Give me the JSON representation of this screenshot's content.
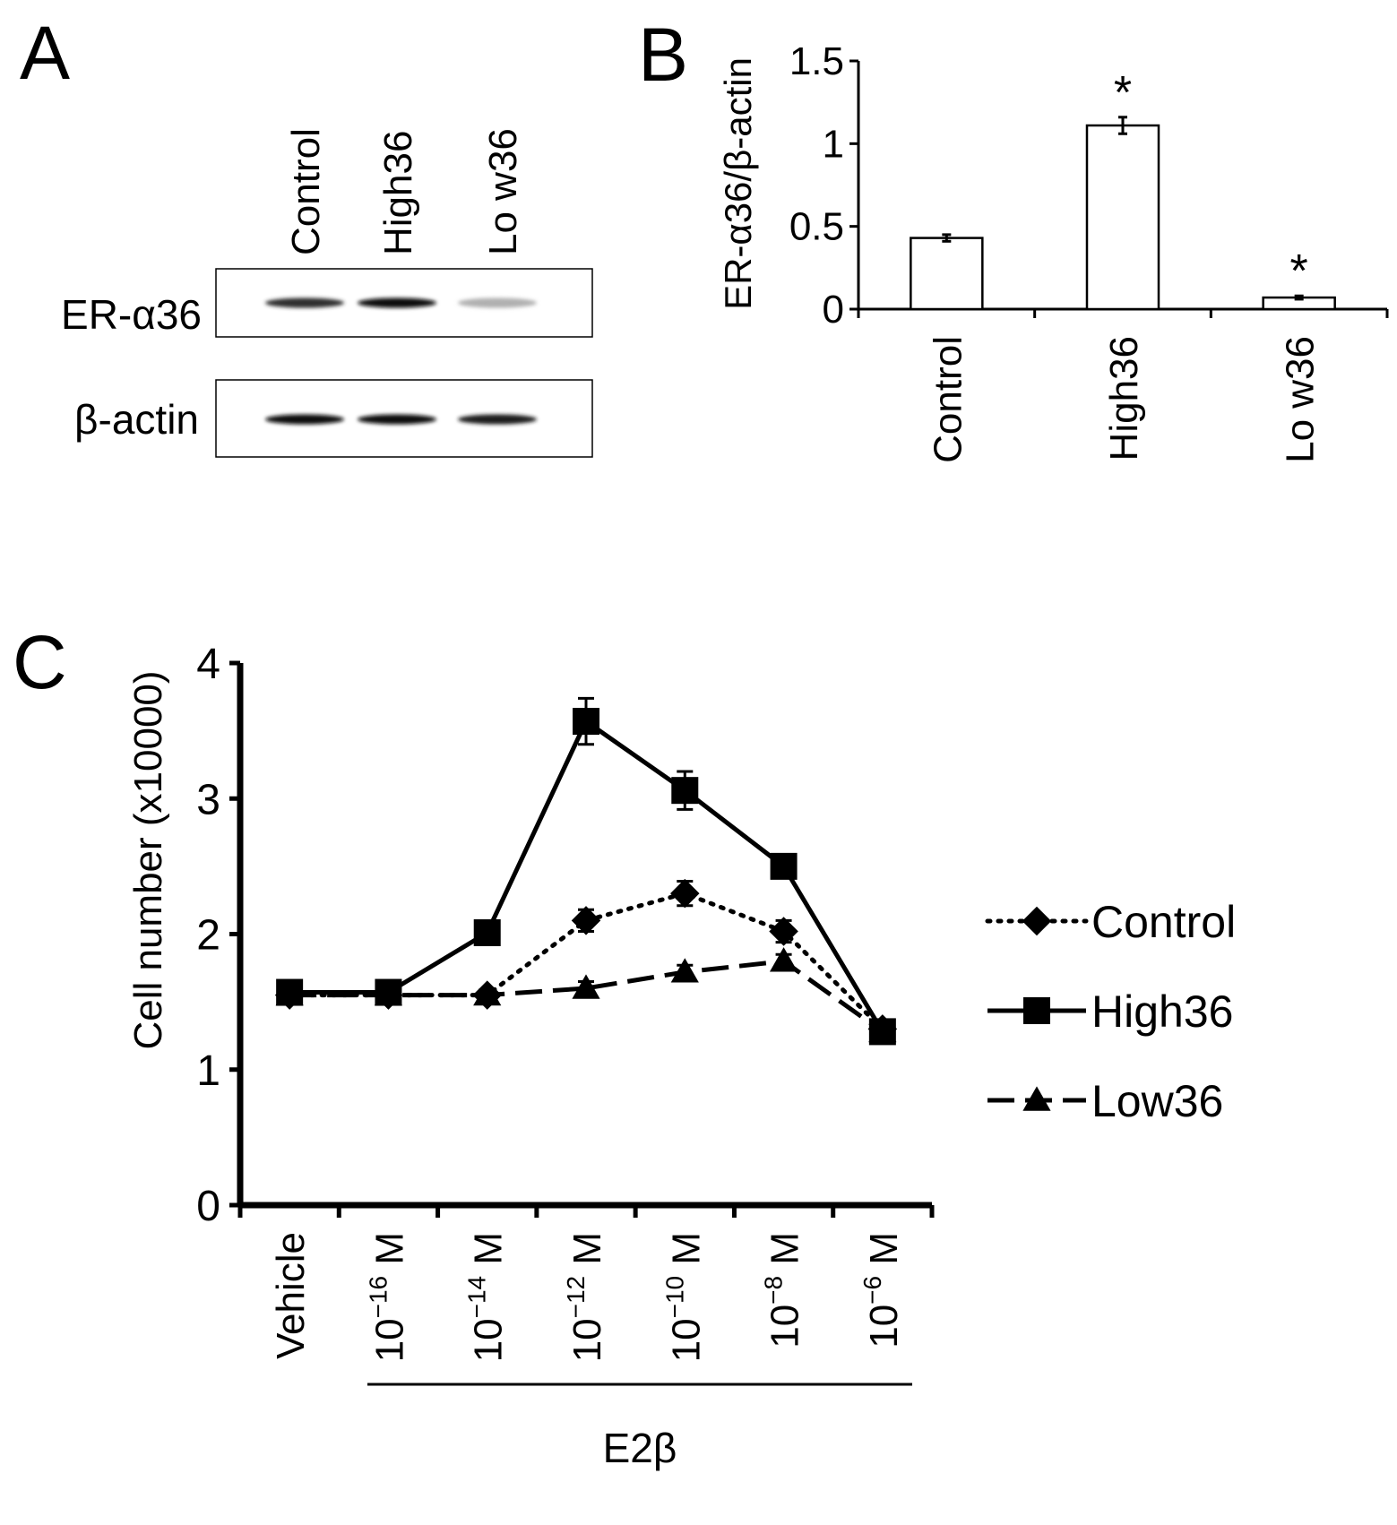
{
  "panels": {
    "a": {
      "letter": "A",
      "lanes": [
        "Control",
        "High36",
        "Lo w36"
      ],
      "blots": [
        {
          "label": "ER-α36",
          "intensity": [
            0.85,
            1.0,
            0.25
          ]
        },
        {
          "label": "β-actin",
          "intensity": [
            1.0,
            1.0,
            0.95
          ]
        }
      ]
    },
    "b": {
      "letter": "B",
      "chart_data": {
        "type": "bar",
        "categories": [
          "Control",
          "High36",
          "Lo w36"
        ],
        "values": [
          0.43,
          1.11,
          0.07
        ],
        "errors": [
          0.02,
          0.05,
          0.01
        ],
        "significance": [
          "",
          "*",
          "*"
        ],
        "ylabel": "ER-α36/β-actin",
        "ylim": [
          0,
          1.5
        ],
        "yticks": [
          "0",
          "0.5",
          "1",
          "1.5"
        ],
        "bar_fill": "#ffffff",
        "bar_stroke": "#000000"
      }
    },
    "c": {
      "letter": "C",
      "chart_data": {
        "type": "line",
        "categories": [
          "Vehicle",
          "10^-16 M",
          "10^-14 M",
          "10^-12 M",
          "10^-10 M",
          "10^-8 M",
          "10^-6 M"
        ],
        "tick_labels": [
          {
            "base": "Vehicle",
            "exp": ""
          },
          {
            "base": "10",
            "exp": "−16",
            "unit": " M"
          },
          {
            "base": "10",
            "exp": "−14",
            "unit": " M"
          },
          {
            "base": "10",
            "exp": "−12",
            "unit": " M"
          },
          {
            "base": "10",
            "exp": "−10",
            "unit": " M"
          },
          {
            "base": "10",
            "exp": "−8",
            "unit": " M"
          },
          {
            "base": "10",
            "exp": "−6",
            "unit": " M"
          }
        ],
        "series": [
          {
            "name": "Control",
            "marker": "diamond",
            "dash": "dotted",
            "values": [
              1.55,
              1.55,
              1.55,
              2.1,
              2.3,
              2.02,
              1.3
            ],
            "errors": [
              0.04,
              0.04,
              0.04,
              0.08,
              0.09,
              0.08,
              0.04
            ]
          },
          {
            "name": "High36",
            "marker": "square",
            "dash": "solid",
            "values": [
              1.57,
              1.57,
              2.01,
              3.57,
              3.06,
              2.5,
              1.28
            ],
            "errors": [
              0.05,
              0.05,
              0.06,
              0.17,
              0.14,
              0.08,
              0.04
            ]
          },
          {
            "name": "Low36",
            "marker": "triangle",
            "dash": "dashed",
            "values": [
              1.55,
              1.55,
              1.55,
              1.6,
              1.72,
              1.8,
              1.28
            ],
            "errors": [
              0.04,
              0.04,
              0.04,
              0.05,
              0.05,
              0.05,
              0.04
            ]
          }
        ],
        "ylabel": "Cell number (x10000)",
        "ylim": [
          0,
          4
        ],
        "yticks": [
          "0",
          "1",
          "2",
          "3",
          "4"
        ],
        "group_label": "E2β",
        "legend_position": "right"
      }
    }
  }
}
